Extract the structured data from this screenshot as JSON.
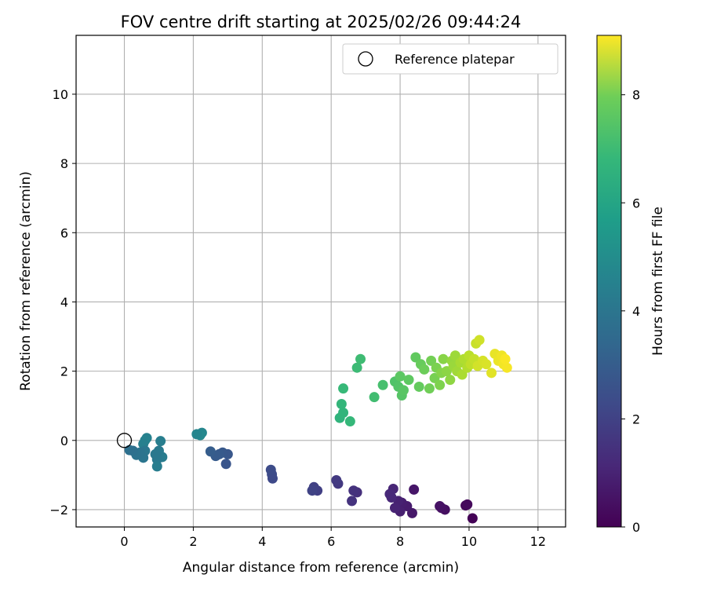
{
  "chart_data": {
    "type": "scatter",
    "title": "FOV centre drift starting at 2025/02/26 09:44:24",
    "xlabel": "Angular distance from reference (arcmin)",
    "ylabel": "Rotation from reference (arcmin)",
    "xlim": [
      -1.4,
      12.8
    ],
    "ylim": [
      -2.5,
      11.7
    ],
    "xticks": [
      0,
      2,
      4,
      6,
      8,
      10,
      12
    ],
    "yticks": [
      -2,
      0,
      2,
      4,
      6,
      8,
      10
    ],
    "grid": true,
    "legend": {
      "placement": "top-right",
      "entries": [
        "Reference platepar"
      ]
    },
    "reference_point": {
      "x": 0,
      "y": 0,
      "label": "Reference platepar"
    },
    "colorbar": {
      "label": "Hours from first FF file",
      "range": [
        0,
        9.1
      ],
      "ticks": [
        0,
        2,
        4,
        6,
        8
      ],
      "colormap": "viridis"
    },
    "series": [
      {
        "points": [
          {
            "x": 10.1,
            "y": -2.25,
            "c": 0.05
          },
          {
            "x": 9.9,
            "y": -1.88,
            "c": 0.15
          },
          {
            "x": 9.95,
            "y": -1.85,
            "c": 0.2
          },
          {
            "x": 9.3,
            "y": -2.0,
            "c": 0.35
          },
          {
            "x": 9.2,
            "y": -1.95,
            "c": 0.4
          },
          {
            "x": 9.15,
            "y": -1.9,
            "c": 0.45
          },
          {
            "x": 8.4,
            "y": -1.42,
            "c": 0.55
          },
          {
            "x": 8.35,
            "y": -2.1,
            "c": 0.6
          },
          {
            "x": 8.2,
            "y": -1.9,
            "c": 0.7
          },
          {
            "x": 8.05,
            "y": -1.8,
            "c": 0.75
          },
          {
            "x": 8.0,
            "y": -2.05,
            "c": 0.8
          },
          {
            "x": 7.95,
            "y": -1.75,
            "c": 0.85
          },
          {
            "x": 7.85,
            "y": -1.95,
            "c": 0.9
          },
          {
            "x": 7.8,
            "y": -1.4,
            "c": 0.95
          },
          {
            "x": 7.75,
            "y": -1.65,
            "c": 1.0
          },
          {
            "x": 7.7,
            "y": -1.55,
            "c": 1.05
          },
          {
            "x": 6.75,
            "y": -1.5,
            "c": 1.25
          },
          {
            "x": 6.65,
            "y": -1.45,
            "c": 1.3
          },
          {
            "x": 6.6,
            "y": -1.75,
            "c": 1.35
          },
          {
            "x": 6.2,
            "y": -1.25,
            "c": 1.5
          },
          {
            "x": 6.15,
            "y": -1.15,
            "c": 1.55
          },
          {
            "x": 5.6,
            "y": -1.45,
            "c": 1.7
          },
          {
            "x": 5.5,
            "y": -1.35,
            "c": 1.75
          },
          {
            "x": 5.45,
            "y": -1.45,
            "c": 1.8
          },
          {
            "x": 4.3,
            "y": -1.1,
            "c": 2.0
          },
          {
            "x": 4.28,
            "y": -0.98,
            "c": 2.05
          },
          {
            "x": 4.25,
            "y": -0.85,
            "c": 2.1
          },
          {
            "x": 2.95,
            "y": -0.68,
            "c": 2.4
          },
          {
            "x": 3.0,
            "y": -0.4,
            "c": 2.45
          },
          {
            "x": 2.85,
            "y": -0.35,
            "c": 2.5
          },
          {
            "x": 2.75,
            "y": -0.4,
            "c": 2.55
          },
          {
            "x": 2.65,
            "y": -0.45,
            "c": 2.6
          },
          {
            "x": 2.5,
            "y": -0.32,
            "c": 2.65
          },
          {
            "x": 2.25,
            "y": 0.22,
            "c": 4.2
          },
          {
            "x": 2.2,
            "y": 0.15,
            "c": 4.25
          },
          {
            "x": 2.1,
            "y": 0.18,
            "c": 4.15
          },
          {
            "x": 1.05,
            "y": -0.02,
            "c": 3.9
          },
          {
            "x": 1.1,
            "y": -0.48,
            "c": 3.8
          },
          {
            "x": 1.0,
            "y": -0.3,
            "c": 3.75
          },
          {
            "x": 0.95,
            "y": -0.55,
            "c": 3.7
          },
          {
            "x": 0.95,
            "y": -0.75,
            "c": 3.85
          },
          {
            "x": 0.9,
            "y": -0.4,
            "c": 3.65
          },
          {
            "x": 0.65,
            "y": 0.07,
            "c": 4.0
          },
          {
            "x": 0.6,
            "y": 0.0,
            "c": 4.05
          },
          {
            "x": 0.55,
            "y": -0.1,
            "c": 3.95
          },
          {
            "x": 0.6,
            "y": -0.3,
            "c": 3.6
          },
          {
            "x": 0.55,
            "y": -0.5,
            "c": 3.55
          },
          {
            "x": 0.45,
            "y": -0.35,
            "c": 3.5
          },
          {
            "x": 0.35,
            "y": -0.42,
            "c": 3.45
          },
          {
            "x": 0.25,
            "y": -0.3,
            "c": 3.4
          },
          {
            "x": 0.15,
            "y": -0.28,
            "c": 3.35
          },
          {
            "x": 6.25,
            "y": 0.65,
            "c": 5.9
          },
          {
            "x": 6.35,
            "y": 0.8,
            "c": 5.95
          },
          {
            "x": 6.3,
            "y": 1.05,
            "c": 6.0
          },
          {
            "x": 6.55,
            "y": 0.55,
            "c": 6.05
          },
          {
            "x": 6.35,
            "y": 1.5,
            "c": 6.1
          },
          {
            "x": 6.75,
            "y": 2.1,
            "c": 6.2
          },
          {
            "x": 6.85,
            "y": 2.35,
            "c": 6.25
          },
          {
            "x": 7.25,
            "y": 1.25,
            "c": 6.3
          },
          {
            "x": 7.5,
            "y": 1.6,
            "c": 6.4
          },
          {
            "x": 7.85,
            "y": 1.7,
            "c": 6.55
          },
          {
            "x": 7.95,
            "y": 1.55,
            "c": 6.6
          },
          {
            "x": 8.05,
            "y": 1.3,
            "c": 6.65
          },
          {
            "x": 8.1,
            "y": 1.45,
            "c": 6.7
          },
          {
            "x": 8.0,
            "y": 1.85,
            "c": 6.75
          },
          {
            "x": 8.25,
            "y": 1.75,
            "c": 6.8
          },
          {
            "x": 8.45,
            "y": 2.4,
            "c": 6.85
          },
          {
            "x": 8.6,
            "y": 2.2,
            "c": 6.95
          },
          {
            "x": 8.55,
            "y": 1.55,
            "c": 6.9
          },
          {
            "x": 8.7,
            "y": 2.05,
            "c": 7.05
          },
          {
            "x": 8.85,
            "y": 1.5,
            "c": 7.1
          },
          {
            "x": 8.9,
            "y": 2.3,
            "c": 7.15
          },
          {
            "x": 9.0,
            "y": 1.8,
            "c": 7.2
          },
          {
            "x": 9.05,
            "y": 2.1,
            "c": 7.25
          },
          {
            "x": 9.15,
            "y": 1.6,
            "c": 7.3
          },
          {
            "x": 9.2,
            "y": 1.95,
            "c": 7.4
          },
          {
            "x": 9.25,
            "y": 2.35,
            "c": 7.45
          },
          {
            "x": 9.35,
            "y": 2.0,
            "c": 7.5
          },
          {
            "x": 9.45,
            "y": 1.75,
            "c": 7.55
          },
          {
            "x": 9.5,
            "y": 2.3,
            "c": 7.65
          },
          {
            "x": 9.55,
            "y": 2.15,
            "c": 7.7
          },
          {
            "x": 9.6,
            "y": 2.45,
            "c": 7.75
          },
          {
            "x": 9.65,
            "y": 2.0,
            "c": 7.8
          },
          {
            "x": 9.75,
            "y": 2.25,
            "c": 7.9
          },
          {
            "x": 9.8,
            "y": 1.9,
            "c": 7.95
          },
          {
            "x": 9.85,
            "y": 2.35,
            "c": 8.0
          },
          {
            "x": 9.95,
            "y": 2.1,
            "c": 8.05
          },
          {
            "x": 10.0,
            "y": 2.45,
            "c": 8.15
          },
          {
            "x": 10.05,
            "y": 2.2,
            "c": 8.25
          },
          {
            "x": 10.15,
            "y": 2.35,
            "c": 8.3
          },
          {
            "x": 10.2,
            "y": 2.8,
            "c": 8.35
          },
          {
            "x": 10.3,
            "y": 2.9,
            "c": 8.45
          },
          {
            "x": 10.25,
            "y": 2.15,
            "c": 8.5
          },
          {
            "x": 10.4,
            "y": 2.3,
            "c": 8.55
          },
          {
            "x": 10.5,
            "y": 2.2,
            "c": 8.6
          },
          {
            "x": 10.65,
            "y": 1.95,
            "c": 8.7
          },
          {
            "x": 10.75,
            "y": 2.5,
            "c": 8.8
          },
          {
            "x": 10.85,
            "y": 2.3,
            "c": 8.85
          },
          {
            "x": 10.95,
            "y": 2.45,
            "c": 8.9
          },
          {
            "x": 11.0,
            "y": 2.2,
            "c": 8.95
          },
          {
            "x": 11.1,
            "y": 2.1,
            "c": 9.0
          },
          {
            "x": 11.05,
            "y": 2.35,
            "c": 9.05
          }
        ]
      }
    ]
  }
}
